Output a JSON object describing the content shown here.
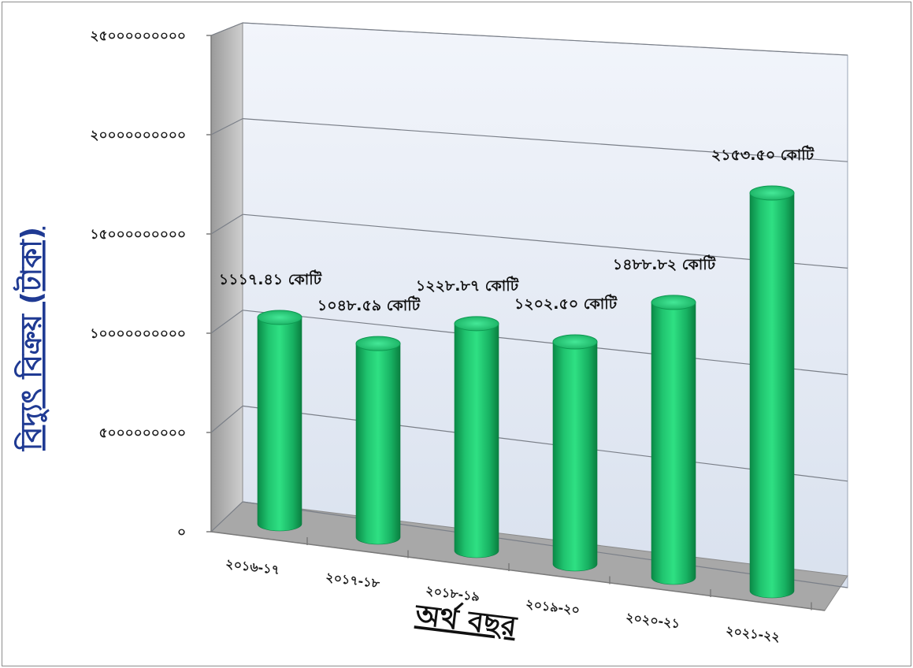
{
  "chart_data": {
    "type": "bar",
    "ylabel": "বিদ্যুৎ বিক্রয় (টাকা)",
    "xlabel": "অর্থ বছর",
    "categories": [
      "২০১৬-১৭",
      "২০১৭-১৮",
      "২০১৮-১৯",
      "২০১৯-২০",
      "২০২০-২১",
      "২০২১-২২"
    ],
    "values": [
      11174100000,
      10485900000,
      12288700000,
      12025000000,
      14888200000,
      21535000000
    ],
    "data_labels": [
      "১১১৭.৪১ কোটি",
      "১০৪৮.৫৯ কোটি",
      "১২২৮.৮৭ কোটি",
      "১২০২.৫০ কোটি",
      "১৪৮৮.৮২ কোটি",
      "২১৫৩.৫০ কোটি"
    ],
    "yticks": [
      "০",
      "৫০০০০০০০০০",
      "১০০০০০০০০০০",
      "১৫০০০০০০০০০",
      "২০০০০০০০০০০",
      "২৫০০০০০০০০০"
    ],
    "ylim": [
      0,
      25000000000
    ],
    "grid": true,
    "bar_color": "#1cc06a"
  }
}
